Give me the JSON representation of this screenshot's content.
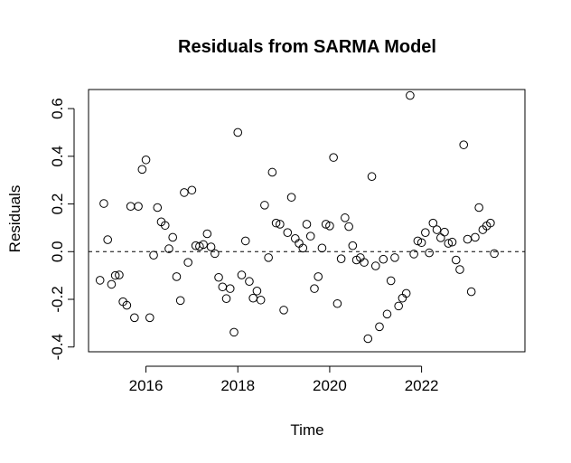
{
  "chart_data": {
    "type": "scatter",
    "title": "Residuals from SARMA Model",
    "xlabel": "Time",
    "ylabel": "Residuals",
    "xlim": [
      2014.75,
      2024.25
    ],
    "ylim": [
      -0.42,
      0.68
    ],
    "x_ticks": [
      2016,
      2018,
      2020,
      2022
    ],
    "x_tick_labels": [
      "2016",
      "2018",
      "2020",
      "2022"
    ],
    "y_ticks": [
      -0.4,
      -0.2,
      0.0,
      0.2,
      0.4,
      0.6
    ],
    "y_tick_labels": [
      "-0.4",
      "-0.2",
      "0.0",
      "0.2",
      "0.4",
      "0.6"
    ],
    "reference_line": {
      "y": 0,
      "style": "dashed"
    },
    "grid": false,
    "points": [
      [
        2015.0,
        -0.12
      ],
      [
        2015.083,
        0.202
      ],
      [
        2015.167,
        0.05
      ],
      [
        2015.25,
        -0.137
      ],
      [
        2015.333,
        -0.1
      ],
      [
        2015.417,
        -0.098
      ],
      [
        2015.5,
        -0.21
      ],
      [
        2015.583,
        -0.225
      ],
      [
        2015.667,
        0.19
      ],
      [
        2015.75,
        -0.277
      ],
      [
        2015.833,
        0.19
      ],
      [
        2015.917,
        0.345
      ],
      [
        2016.0,
        0.385
      ],
      [
        2016.083,
        -0.277
      ],
      [
        2016.167,
        -0.015
      ],
      [
        2016.25,
        0.185
      ],
      [
        2016.333,
        0.125
      ],
      [
        2016.417,
        0.11
      ],
      [
        2016.5,
        0.012
      ],
      [
        2016.583,
        0.06
      ],
      [
        2016.667,
        -0.105
      ],
      [
        2016.75,
        -0.205
      ],
      [
        2016.833,
        0.248
      ],
      [
        2016.917,
        -0.045
      ],
      [
        2017.0,
        0.258
      ],
      [
        2017.083,
        0.025
      ],
      [
        2017.167,
        0.022
      ],
      [
        2017.25,
        0.03
      ],
      [
        2017.333,
        0.075
      ],
      [
        2017.417,
        0.02
      ],
      [
        2017.5,
        -0.008
      ],
      [
        2017.583,
        -0.108
      ],
      [
        2017.667,
        -0.148
      ],
      [
        2017.75,
        -0.197
      ],
      [
        2017.833,
        -0.155
      ],
      [
        2017.917,
        -0.338
      ],
      [
        2018.0,
        0.5
      ],
      [
        2018.083,
        -0.098
      ],
      [
        2018.167,
        0.045
      ],
      [
        2018.25,
        -0.125
      ],
      [
        2018.333,
        -0.195
      ],
      [
        2018.417,
        -0.165
      ],
      [
        2018.5,
        -0.203
      ],
      [
        2018.583,
        0.195
      ],
      [
        2018.667,
        -0.025
      ],
      [
        2018.75,
        0.333
      ],
      [
        2018.833,
        0.12
      ],
      [
        2018.917,
        0.115
      ],
      [
        2019.0,
        -0.245
      ],
      [
        2019.083,
        0.08
      ],
      [
        2019.167,
        0.228
      ],
      [
        2019.25,
        0.055
      ],
      [
        2019.333,
        0.035
      ],
      [
        2019.417,
        0.015
      ],
      [
        2019.5,
        0.115
      ],
      [
        2019.583,
        0.065
      ],
      [
        2019.667,
        -0.155
      ],
      [
        2019.75,
        -0.105
      ],
      [
        2019.833,
        0.015
      ],
      [
        2019.917,
        0.115
      ],
      [
        2020.0,
        0.108
      ],
      [
        2020.083,
        0.395
      ],
      [
        2020.167,
        -0.218
      ],
      [
        2020.25,
        -0.03
      ],
      [
        2020.333,
        0.142
      ],
      [
        2020.417,
        0.105
      ],
      [
        2020.5,
        0.025
      ],
      [
        2020.583,
        -0.035
      ],
      [
        2020.667,
        -0.025
      ],
      [
        2020.75,
        -0.045
      ],
      [
        2020.833,
        -0.365
      ],
      [
        2020.917,
        0.315
      ],
      [
        2021.0,
        -0.06
      ],
      [
        2021.083,
        -0.315
      ],
      [
        2021.167,
        -0.032
      ],
      [
        2021.25,
        -0.262
      ],
      [
        2021.333,
        -0.122
      ],
      [
        2021.417,
        -0.025
      ],
      [
        2021.5,
        -0.228
      ],
      [
        2021.583,
        -0.195
      ],
      [
        2021.667,
        -0.175
      ],
      [
        2021.75,
        0.655
      ],
      [
        2021.833,
        -0.01
      ],
      [
        2021.917,
        0.045
      ],
      [
        2022.0,
        0.038
      ],
      [
        2022.083,
        0.08
      ],
      [
        2022.167,
        -0.005
      ],
      [
        2022.25,
        0.12
      ],
      [
        2022.333,
        0.092
      ],
      [
        2022.417,
        0.058
      ],
      [
        2022.5,
        0.082
      ],
      [
        2022.583,
        0.035
      ],
      [
        2022.667,
        0.04
      ],
      [
        2022.75,
        -0.035
      ],
      [
        2022.833,
        -0.075
      ],
      [
        2022.917,
        0.448
      ],
      [
        2023.0,
        0.052
      ],
      [
        2023.083,
        -0.168
      ],
      [
        2023.167,
        0.06
      ],
      [
        2023.25,
        0.185
      ],
      [
        2023.333,
        0.092
      ],
      [
        2023.417,
        0.108
      ],
      [
        2023.5,
        0.12
      ],
      [
        2023.583,
        -0.008
      ]
    ]
  }
}
